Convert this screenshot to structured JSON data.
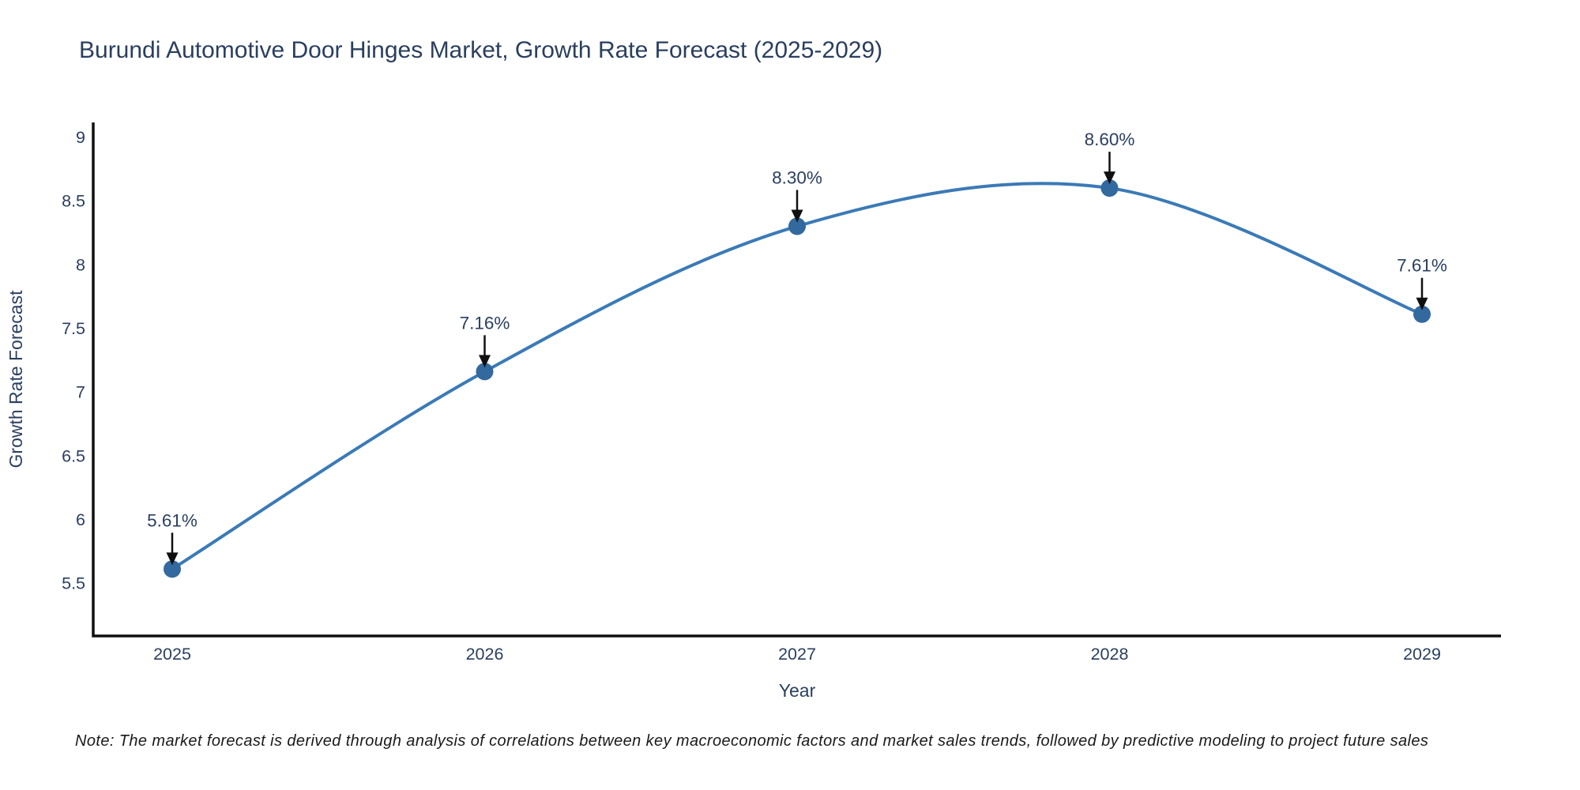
{
  "note": "Note: The market forecast is derived through analysis of correlations between key macroeconomic factors and market sales trends, followed by predictive modeling to project future sales",
  "chart_data": {
    "type": "line",
    "title": "Burundi Automotive Door Hinges Market, Growth Rate Forecast (2025-2029)",
    "xlabel": "Year",
    "ylabel": "Growth Rate Forecast",
    "categories": [
      "2025",
      "2026",
      "2027",
      "2028",
      "2029"
    ],
    "series": [
      {
        "name": "Growth Rate Forecast",
        "values": [
          5.61,
          7.16,
          8.3,
          8.6,
          7.61
        ]
      }
    ],
    "point_labels": [
      "5.61%",
      "7.16%",
      "8.30%",
      "8.60%",
      "7.61%"
    ],
    "y_tick_values": [
      5.5,
      6,
      6.5,
      7,
      7.5,
      8,
      8.5,
      9
    ],
    "y_tick_labels": [
      "5.5",
      "6",
      "6.5",
      "7",
      "7.5",
      "8",
      "8.5",
      "9"
    ],
    "ylim": [
      5.085,
      9.115
    ],
    "line_shape": "spline",
    "grid": false,
    "legend": false,
    "colors": {
      "background": "#ffffff",
      "text": "#2a3f5f",
      "axis": "#101010",
      "line": "#3b7ab6",
      "marker": "#32699e",
      "annotation_arrow": "#101010",
      "note_text": "#1a1a1a"
    }
  }
}
